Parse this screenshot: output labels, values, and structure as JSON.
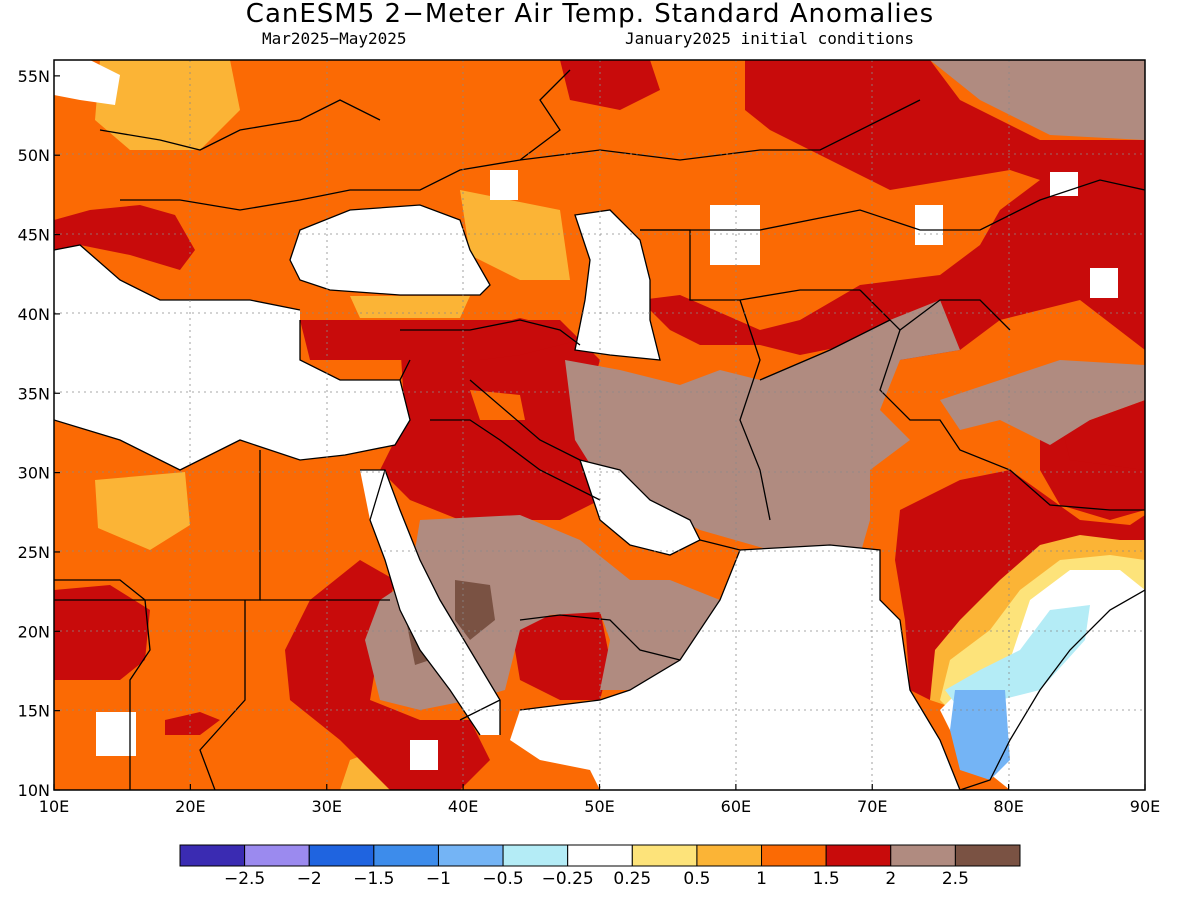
{
  "title": "CanESM5 2−Meter Air Temp. Standard Anomalies",
  "subtitle_left": "Mar2025−May2025",
  "subtitle_right": "January2025 initial conditions",
  "map": {
    "lon_range": [
      10,
      90
    ],
    "lat_range": [
      10,
      56
    ],
    "lat_ticks": [
      {
        "v": 55,
        "label": "55N"
      },
      {
        "v": 50,
        "label": "50N"
      },
      {
        "v": 45,
        "label": "45N"
      },
      {
        "v": 40,
        "label": "40N"
      },
      {
        "v": 35,
        "label": "35N"
      },
      {
        "v": 30,
        "label": "30N"
      },
      {
        "v": 25,
        "label": "25N"
      },
      {
        "v": 20,
        "label": "20N"
      },
      {
        "v": 15,
        "label": "15N"
      },
      {
        "v": 10,
        "label": "10N"
      }
    ],
    "lon_ticks": [
      {
        "v": 10,
        "label": "10E"
      },
      {
        "v": 20,
        "label": "20E"
      },
      {
        "v": 30,
        "label": "30E"
      },
      {
        "v": 40,
        "label": "40E"
      },
      {
        "v": 50,
        "label": "50E"
      },
      {
        "v": 60,
        "label": "60E"
      },
      {
        "v": 70,
        "label": "70E"
      },
      {
        "v": 80,
        "label": "80E"
      },
      {
        "v": 90,
        "label": "90E"
      }
    ]
  },
  "colorbar": {
    "colors": [
      "#3a2bb2",
      "#9b8aef",
      "#1f64e0",
      "#3d8ceb",
      "#74b4f5",
      "#b4ecf6",
      "#ffffff",
      "#fde37a",
      "#fbb436",
      "#fb6a04",
      "#c80b0b",
      "#b08b80",
      "#7a5243"
    ],
    "labels": [
      "−2.5",
      "−2",
      "−1.5",
      "−1",
      "−0.5",
      "−0.25",
      "0.25",
      "0.5",
      "1",
      "1.5",
      "2",
      "2.5"
    ]
  },
  "colors": {
    "orange": "#fb6a04",
    "dark_red": "#c80b0b",
    "light_orange": "#fbb436",
    "yellow": "#fde37a",
    "light_brown": "#b08b80",
    "dark_brown": "#7a5243",
    "light_blue": "#b4ecf6",
    "mid_blue": "#74b4f5"
  }
}
